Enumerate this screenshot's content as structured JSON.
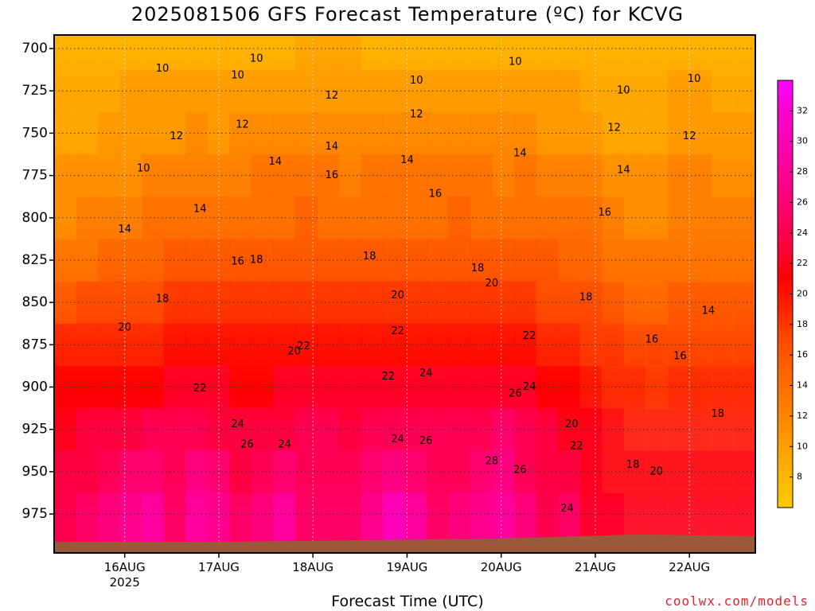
{
  "title": "2025081506 GFS Forecast Temperature (ºC) for KCVG",
  "xaxis_label": "Forecast Time (UTC)",
  "credit": "coolwx.com/models",
  "colors": {
    "ground": "#9a5a3a",
    "frame": "#000000",
    "grid": "#333333"
  },
  "chart_data": {
    "type": "heatmap",
    "title": "2025081506 GFS Forecast Temperature (ºC) for KCVG",
    "xlabel": "Forecast Time (UTC)",
    "ylabel": "",
    "y_axis_ticks": [
      "700",
      "725",
      "750",
      "775",
      "800",
      "825",
      "850",
      "875",
      "900",
      "925",
      "950",
      "975"
    ],
    "x_axis_ticks": [
      {
        "label": "16AUG",
        "sublabel": "2025"
      },
      {
        "label": "17AUG",
        "sublabel": ""
      },
      {
        "label": "18AUG",
        "sublabel": ""
      },
      {
        "label": "19AUG",
        "sublabel": ""
      },
      {
        "label": "20AUG",
        "sublabel": ""
      },
      {
        "label": "21AUG",
        "sublabel": ""
      },
      {
        "label": "22AUG",
        "sublabel": ""
      }
    ],
    "colorbar_ticks": [
      "8",
      "10",
      "12",
      "14",
      "16",
      "18",
      "20",
      "22",
      "24",
      "26",
      "28",
      "30",
      "32"
    ],
    "colorbar_colors": [
      "#ffcc00",
      "#ffb300",
      "#ff9a00",
      "#ff8000",
      "#ff6600",
      "#ff4d00",
      "#ff2600",
      "#ff0000",
      "#ff0040",
      "#ff0066",
      "#ff0090",
      "#ff00b0",
      "#ff00cc",
      "#ff00ff"
    ],
    "contour_labels": [
      {
        "text": "10",
        "day": 0.4,
        "p": 712
      },
      {
        "text": "10",
        "day": 1.2,
        "p": 716
      },
      {
        "text": "10",
        "day": 1.4,
        "p": 706
      },
      {
        "text": "10",
        "day": 3.1,
        "p": 719
      },
      {
        "text": "10",
        "day": 4.15,
        "p": 708
      },
      {
        "text": "10",
        "day": 5.3,
        "p": 725
      },
      {
        "text": "10",
        "day": 6.05,
        "p": 718
      },
      {
        "text": "10",
        "day": 0.2,
        "p": 771
      },
      {
        "text": "12",
        "day": 0.55,
        "p": 752
      },
      {
        "text": "12",
        "day": 1.25,
        "p": 745
      },
      {
        "text": "12",
        "day": 2.2,
        "p": 728
      },
      {
        "text": "12",
        "day": 3.1,
        "p": 739
      },
      {
        "text": "12",
        "day": 5.2,
        "p": 747
      },
      {
        "text": "12",
        "day": 6.0,
        "p": 752
      },
      {
        "text": "14",
        "day": 1.6,
        "p": 767
      },
      {
        "text": "14",
        "day": 2.2,
        "p": 758
      },
      {
        "text": "14",
        "day": 3.0,
        "p": 766
      },
      {
        "text": "14",
        "day": 4.2,
        "p": 762
      },
      {
        "text": "14",
        "day": 5.3,
        "p": 772
      },
      {
        "text": "14",
        "day": 0.8,
        "p": 795
      },
      {
        "text": "14",
        "day": 0.0,
        "p": 807
      },
      {
        "text": "14",
        "day": 6.2,
        "p": 855
      },
      {
        "text": "16",
        "day": 2.2,
        "p": 775
      },
      {
        "text": "16",
        "day": 3.3,
        "p": 786
      },
      {
        "text": "16",
        "day": 1.2,
        "p": 826
      },
      {
        "text": "16",
        "day": 5.1,
        "p": 797
      },
      {
        "text": "16",
        "day": 5.6,
        "p": 872
      },
      {
        "text": "16",
        "day": 5.9,
        "p": 882
      },
      {
        "text": "18",
        "day": 1.4,
        "p": 825
      },
      {
        "text": "18",
        "day": 2.6,
        "p": 823
      },
      {
        "text": "18",
        "day": 3.75,
        "p": 830
      },
      {
        "text": "18",
        "day": 4.9,
        "p": 847
      },
      {
        "text": "18",
        "day": 6.3,
        "p": 916
      },
      {
        "text": "18",
        "day": 5.4,
        "p": 946
      },
      {
        "text": "18",
        "day": 0.4,
        "p": 848
      },
      {
        "text": "20",
        "day": 0.0,
        "p": 865
      },
      {
        "text": "20",
        "day": 1.8,
        "p": 879
      },
      {
        "text": "20",
        "day": 2.9,
        "p": 846
      },
      {
        "text": "20",
        "day": 3.9,
        "p": 839
      },
      {
        "text": "20",
        "day": 4.75,
        "p": 922
      },
      {
        "text": "20",
        "day": 5.65,
        "p": 950
      },
      {
        "text": "22",
        "day": 0.8,
        "p": 901
      },
      {
        "text": "22",
        "day": 1.9,
        "p": 876
      },
      {
        "text": "22",
        "day": 2.8,
        "p": 894
      },
      {
        "text": "22",
        "day": 2.9,
        "p": 867
      },
      {
        "text": "22",
        "day": 4.3,
        "p": 870
      },
      {
        "text": "22",
        "day": 4.8,
        "p": 935
      },
      {
        "text": "24",
        "day": 1.2,
        "p": 922
      },
      {
        "text": "24",
        "day": 1.7,
        "p": 934
      },
      {
        "text": "24",
        "day": 2.9,
        "p": 931
      },
      {
        "text": "24",
        "day": 3.2,
        "p": 892
      },
      {
        "text": "24",
        "day": 4.3,
        "p": 900
      },
      {
        "text": "24",
        "day": 4.7,
        "p": 972
      },
      {
        "text": "26",
        "day": 1.3,
        "p": 934
      },
      {
        "text": "26",
        "day": 3.2,
        "p": 932
      },
      {
        "text": "26",
        "day": 4.15,
        "p": 904
      },
      {
        "text": "26",
        "day": 4.2,
        "p": 949
      },
      {
        "text": "28",
        "day": 3.9,
        "p": 944
      }
    ],
    "pressure_levels": [
      700,
      725,
      750,
      775,
      800,
      825,
      850,
      875,
      900,
      925,
      950,
      975
    ],
    "temperature_grid": [
      [
        9,
        10,
        9,
        10,
        10,
        10,
        10,
        10,
        10,
        10,
        10,
        11,
        11,
        11,
        10,
        10,
        10,
        10,
        10,
        10,
        10,
        10,
        10,
        10,
        10,
        10,
        10,
        10,
        10,
        10,
        10,
        9
      ],
      [
        10,
        10,
        10,
        11,
        11,
        12,
        12,
        11,
        11,
        12,
        12,
        12,
        11,
        12,
        11,
        11,
        12,
        11,
        12,
        12,
        11,
        12,
        11,
        11,
        10,
        10,
        10,
        10,
        11,
        11,
        10,
        10
      ],
      [
        10,
        10,
        11,
        11,
        12,
        12,
        13,
        12,
        13,
        13,
        13,
        13,
        13,
        13,
        13,
        13,
        13,
        13,
        13,
        13,
        13,
        13,
        12,
        12,
        11,
        10,
        10,
        10,
        12,
        12,
        11,
        11
      ],
      [
        11,
        11,
        12,
        12,
        13,
        14,
        14,
        14,
        14,
        15,
        15,
        15,
        15,
        14,
        15,
        15,
        15,
        15,
        15,
        15,
        14,
        15,
        14,
        14,
        13,
        12,
        12,
        12,
        13,
        13,
        12,
        12
      ],
      [
        12,
        13,
        13,
        14,
        15,
        15,
        16,
        16,
        16,
        16,
        16,
        17,
        16,
        16,
        16,
        16,
        16,
        16,
        17,
        16,
        16,
        16,
        16,
        15,
        15,
        13,
        12,
        12,
        13,
        13,
        13,
        13
      ],
      [
        14,
        14,
        15,
        16,
        16,
        17,
        17,
        17,
        18,
        18,
        18,
        18,
        18,
        18,
        18,
        18,
        18,
        18,
        18,
        17,
        18,
        17,
        17,
        16,
        16,
        14,
        13,
        13,
        14,
        14,
        14,
        14
      ],
      [
        16,
        17,
        17,
        17,
        18,
        19,
        19,
        19,
        19,
        20,
        19,
        20,
        20,
        19,
        20,
        20,
        20,
        20,
        20,
        19,
        19,
        19,
        18,
        18,
        17,
        15,
        14,
        14,
        15,
        15,
        15,
        15
      ],
      [
        19,
        19,
        20,
        20,
        20,
        21,
        22,
        21,
        21,
        21,
        21,
        22,
        22,
        22,
        21,
        22,
        22,
        22,
        22,
        21,
        22,
        22,
        20,
        20,
        18,
        17,
        15,
        15,
        16,
        16,
        16,
        16
      ],
      [
        21,
        21,
        22,
        22,
        22,
        23,
        23,
        23,
        22,
        22,
        23,
        24,
        24,
        23,
        23,
        24,
        24,
        24,
        24,
        24,
        24,
        23,
        22,
        21,
        20,
        18,
        17,
        16,
        17,
        17,
        17,
        17
      ],
      [
        22,
        23,
        24,
        24,
        25,
        25,
        26,
        24,
        23,
        24,
        24,
        25,
        25,
        24,
        25,
        26,
        26,
        25,
        25,
        26,
        27,
        25,
        23,
        22,
        21,
        19,
        18,
        18,
        18,
        18,
        18,
        18
      ],
      [
        23,
        24,
        25,
        27,
        28,
        26,
        29,
        27,
        24,
        26,
        27,
        26,
        25,
        25,
        27,
        29,
        28,
        26,
        26,
        28,
        30,
        26,
        23,
        24,
        22,
        20,
        19,
        19,
        19,
        19,
        19,
        19
      ],
      [
        24,
        25,
        27,
        29,
        32,
        26,
        32,
        30,
        25,
        28,
        31,
        26,
        25,
        26,
        29,
        33,
        31,
        26,
        27,
        30,
        32,
        27,
        24,
        25,
        22,
        21,
        20,
        20,
        20,
        20,
        20,
        20
      ]
    ]
  }
}
